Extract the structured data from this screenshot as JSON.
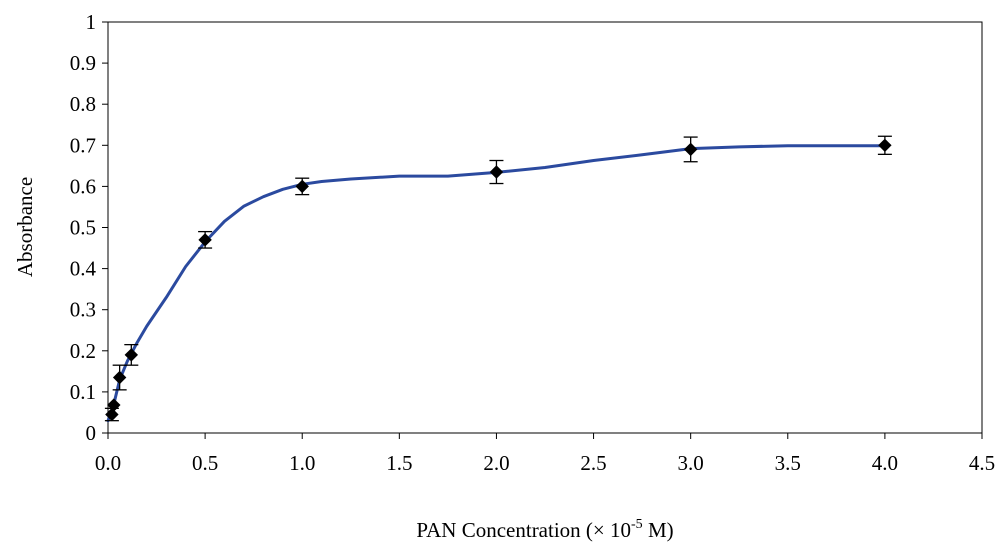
{
  "chart_data": {
    "type": "scatter",
    "title": "",
    "xlabel": {
      "main": "PAN Concentration (× 10",
      "exponent": "-5",
      "suffix": " M)"
    },
    "ylabel": "Absorbance",
    "xlim": [
      0,
      4.5
    ],
    "ylim": [
      0,
      1
    ],
    "x_ticks": [
      0,
      0.5,
      1,
      1.5,
      2,
      2.5,
      3,
      3.5,
      4,
      4.5
    ],
    "x_tick_labels": [
      "0.0",
      "0.5",
      "1.0",
      "1.5",
      "2.0",
      "2.5",
      "3.0",
      "3.5",
      "4.0",
      "4.5"
    ],
    "y_ticks": [
      0,
      0.1,
      0.2,
      0.3,
      0.4,
      0.5,
      0.6,
      0.7,
      0.8,
      0.9,
      1
    ],
    "y_tick_labels": [
      "0",
      "0.1",
      "0.2",
      "0.3",
      "0.4",
      "0.5",
      "0.6",
      "0.7",
      "0.8",
      "0.9",
      "1"
    ],
    "grid": false,
    "legend": "none",
    "series": [
      {
        "marker": "diamond",
        "marker_color": "#000000",
        "points": [
          {
            "x": 0.02,
            "y": 0.045,
            "err": 0.015
          },
          {
            "x": 0.03,
            "y": 0.068,
            "err": 0.0
          },
          {
            "x": 0.06,
            "y": 0.135,
            "err": 0.03
          },
          {
            "x": 0.12,
            "y": 0.19,
            "err": 0.025
          },
          {
            "x": 0.5,
            "y": 0.47,
            "err": 0.02
          },
          {
            "x": 1.0,
            "y": 0.6,
            "err": 0.02
          },
          {
            "x": 2.0,
            "y": 0.635,
            "err": 0.028
          },
          {
            "x": 3.0,
            "y": 0.69,
            "err": 0.03
          },
          {
            "x": 4.0,
            "y": 0.7,
            "err": 0.022
          }
        ]
      }
    ],
    "trend_line": {
      "color": "#2b4a9f",
      "points": [
        [
          0.0,
          0.03
        ],
        [
          0.03,
          0.07
        ],
        [
          0.06,
          0.13
        ],
        [
          0.1,
          0.175
        ],
        [
          0.15,
          0.22
        ],
        [
          0.2,
          0.26
        ],
        [
          0.3,
          0.33
        ],
        [
          0.4,
          0.405
        ],
        [
          0.5,
          0.465
        ],
        [
          0.6,
          0.515
        ],
        [
          0.7,
          0.552
        ],
        [
          0.8,
          0.575
        ],
        [
          0.9,
          0.593
        ],
        [
          1.0,
          0.605
        ],
        [
          1.1,
          0.612
        ],
        [
          1.25,
          0.618
        ],
        [
          1.5,
          0.625
        ],
        [
          1.75,
          0.625
        ],
        [
          2.0,
          0.634
        ],
        [
          2.25,
          0.646
        ],
        [
          2.5,
          0.663
        ],
        [
          2.75,
          0.677
        ],
        [
          3.0,
          0.692
        ],
        [
          3.25,
          0.696
        ],
        [
          3.5,
          0.699
        ],
        [
          3.75,
          0.699
        ],
        [
          4.0,
          0.699
        ]
      ]
    }
  }
}
